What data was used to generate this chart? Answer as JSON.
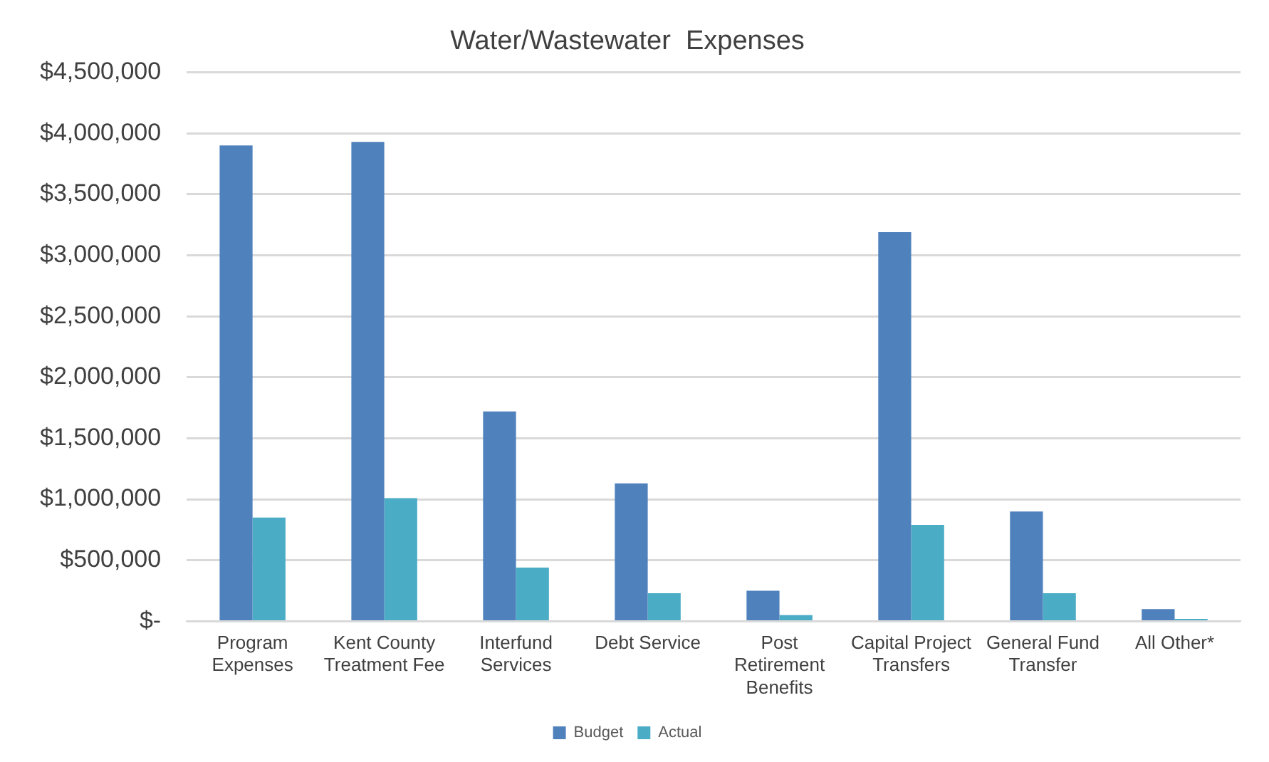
{
  "chart_data": {
    "type": "bar",
    "title": "Water/Wastewater  Expenses",
    "categories": [
      "Program Expenses",
      "Kent County Treatment Fee",
      "Interfund Services",
      "Debt Service",
      "Post Retirement Benefits",
      "Capital Project Transfers",
      "General Fund Transfer",
      "All Other*"
    ],
    "series": [
      {
        "name": "Budget",
        "color": "#4f81bd",
        "values": [
          3900000,
          3930000,
          1720000,
          1130000,
          250000,
          3190000,
          900000,
          100000
        ]
      },
      {
        "name": "Actual",
        "color": "#4bacc6",
        "values": [
          850000,
          1010000,
          440000,
          230000,
          50000,
          790000,
          230000,
          20000
        ]
      }
    ],
    "ylim": [
      0,
      4500000
    ],
    "yticks": [
      {
        "value": 0,
        "label": "$-"
      },
      {
        "value": 500000,
        "label": "$500,000"
      },
      {
        "value": 1000000,
        "label": "$1,000,000"
      },
      {
        "value": 1500000,
        "label": "$1,500,000"
      },
      {
        "value": 2000000,
        "label": "$2,000,000"
      },
      {
        "value": 2500000,
        "label": "$2,500,000"
      },
      {
        "value": 3000000,
        "label": "$3,000,000"
      },
      {
        "value": 3500000,
        "label": "$3,500,000"
      },
      {
        "value": 4000000,
        "label": "$4,000,000"
      },
      {
        "value": 4500000,
        "label": "$4,500,000"
      }
    ],
    "grid": "y",
    "legend": "bottom"
  }
}
